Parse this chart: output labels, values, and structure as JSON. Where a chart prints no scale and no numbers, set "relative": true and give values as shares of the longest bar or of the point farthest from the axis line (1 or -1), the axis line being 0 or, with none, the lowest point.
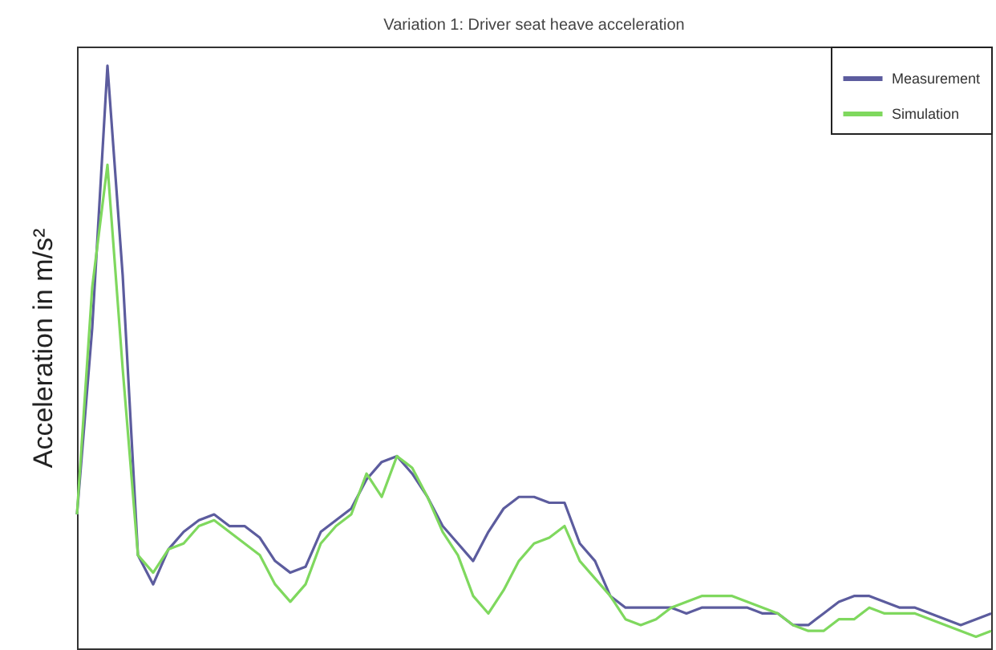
{
  "chart_data": {
    "type": "line",
    "title": "Variation 1: Driver seat heave acceleration",
    "ylabel": "Acceleration in m/s²",
    "relative": true,
    "legend": "top right",
    "grid": false,
    "line_style": "solid",
    "marker": "none",
    "categories": [
      null,
      null,
      null,
      null,
      null,
      null,
      null,
      null,
      null,
      null,
      null,
      null,
      null,
      null,
      null,
      null,
      null,
      null,
      null,
      null,
      null,
      null,
      null,
      null,
      null,
      null,
      null,
      null,
      null,
      null,
      null,
      null,
      null,
      null,
      null,
      null,
      null,
      null,
      null,
      null,
      null,
      null,
      null,
      null,
      null,
      null,
      null,
      null,
      null,
      null,
      null,
      null,
      null,
      null,
      null,
      null,
      null,
      null,
      null,
      null,
      null
    ],
    "series": [
      {
        "name": "Measurement",
        "color": "#5c5c9e",
        "values": [
          0.23,
          0.55,
          1.0,
          0.64,
          0.16,
          0.11,
          0.17,
          0.2,
          0.22,
          0.23,
          0.21,
          0.21,
          0.19,
          0.15,
          0.13,
          0.14,
          0.2,
          0.22,
          0.24,
          0.29,
          0.32,
          0.33,
          0.3,
          0.26,
          0.21,
          0.18,
          0.15,
          0.2,
          0.24,
          0.26,
          0.26,
          0.25,
          0.25,
          0.18,
          0.15,
          0.09,
          0.07,
          0.07,
          0.07,
          0.07,
          0.06,
          0.07,
          0.07,
          0.07,
          0.07,
          0.06,
          0.06,
          0.04,
          0.04,
          0.06,
          0.08,
          0.09,
          0.09,
          0.08,
          0.07,
          0.07,
          0.06,
          0.05,
          0.04,
          0.05,
          0.06
        ]
      },
      {
        "name": "Simulation",
        "color": "#7fd85e",
        "values": [
          0.23,
          0.62,
          0.83,
          0.48,
          0.16,
          0.13,
          0.17,
          0.18,
          0.21,
          0.22,
          0.2,
          0.18,
          0.16,
          0.11,
          0.08,
          0.11,
          0.18,
          0.21,
          0.23,
          0.3,
          0.26,
          0.33,
          0.31,
          0.26,
          0.2,
          0.16,
          0.09,
          0.06,
          0.1,
          0.15,
          0.18,
          0.19,
          0.21,
          0.15,
          0.12,
          0.09,
          0.05,
          0.04,
          0.05,
          0.07,
          0.08,
          0.09,
          0.09,
          0.09,
          0.08,
          0.07,
          0.06,
          0.04,
          0.03,
          0.03,
          0.05,
          0.05,
          0.07,
          0.06,
          0.06,
          0.06,
          0.05,
          0.04,
          0.03,
          0.02,
          0.03
        ]
      }
    ]
  }
}
